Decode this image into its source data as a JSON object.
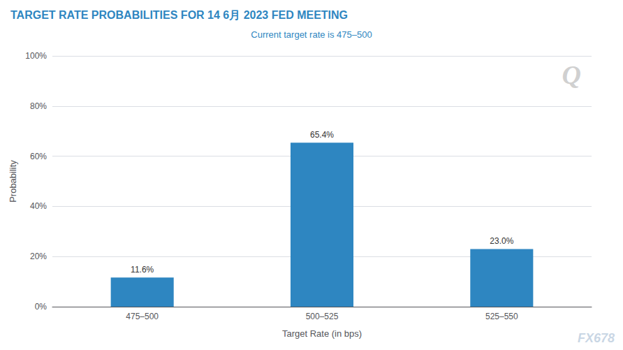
{
  "chart_data": {
    "type": "bar",
    "title": "TARGET RATE PROBABILITIES FOR 14 6月 2023 FED MEETING",
    "subtitle": "Current target rate is 475–500",
    "categories": [
      "475–500",
      "500–525",
      "525–550"
    ],
    "values": [
      11.6,
      65.4,
      23.0
    ],
    "value_labels": [
      "11.6%",
      "65.4%",
      "23.0%"
    ],
    "data_labels": true,
    "color": "#2e86c1",
    "xlabel": "Target Rate (in bps)",
    "ylabel": "Probability",
    "ylim": [
      0,
      100
    ],
    "yticks": [
      {
        "value": 0,
        "label": "0%"
      },
      {
        "value": 20,
        "label": "20%"
      },
      {
        "value": 40,
        "label": "40%"
      },
      {
        "value": 60,
        "label": "60%"
      },
      {
        "value": 80,
        "label": "80%"
      },
      {
        "value": 100,
        "label": "100%"
      }
    ],
    "grid": true,
    "annotations": [
      "Q",
      "FX678"
    ]
  }
}
